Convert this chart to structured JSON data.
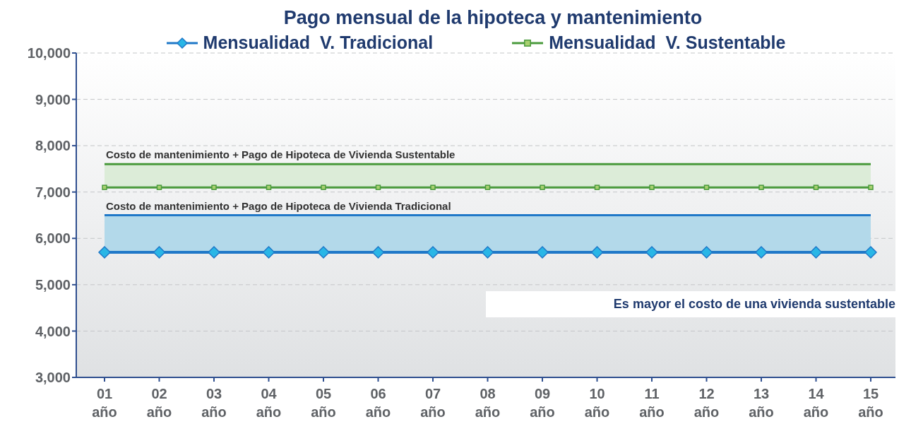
{
  "chart_data": {
    "type": "line",
    "title": "Pago mensual de la hipoteca y mantenimiento",
    "categories": [
      "01 año",
      "02 año",
      "03 año",
      "04 año",
      "05 año",
      "06 año",
      "07 año",
      "08 año",
      "09 año",
      "10 año",
      "11 año",
      "12 año",
      "13 año",
      "14 año",
      "15 año"
    ],
    "series": [
      {
        "name": "Mensualidad  V. Tradicional",
        "color": "#1f78c8",
        "marker": "diamond",
        "values": [
          5700,
          5700,
          5700,
          5700,
          5700,
          5700,
          5700,
          5700,
          5700,
          5700,
          5700,
          5700,
          5700,
          5700,
          5700
        ]
      },
      {
        "name": "Mensualidad  V. Sustentable",
        "color": "#4a9a3c",
        "marker": "square",
        "values": [
          7100,
          7100,
          7100,
          7100,
          7100,
          7100,
          7100,
          7100,
          7100,
          7100,
          7100,
          7100,
          7100,
          7100,
          7100
        ]
      },
      {
        "color": "#1f78c8",
        "marker": "none",
        "values": [
          6500,
          6500,
          6500,
          6500,
          6500,
          6500,
          6500,
          6500,
          6500,
          6500,
          6500,
          6500,
          6500,
          6500,
          6500
        ]
      },
      {
        "color": "#4a9a3c",
        "marker": "none",
        "values": [
          7600,
          7600,
          7600,
          7600,
          7600,
          7600,
          7600,
          7600,
          7600,
          7600,
          7600,
          7600,
          7600,
          7600,
          7600
        ]
      }
    ],
    "bands": [
      {
        "axis": "y",
        "from": 5700,
        "to": 6500,
        "label": "Costo de mantenimiento + Pago de Hipoteca  de Vivienda Tradicional",
        "color": "#b3d9ea"
      },
      {
        "axis": "y",
        "from": 7100,
        "to": 7600,
        "label": "Costo de mantenimiento + Pago de Hipoteca  de Vivienda Sustentable",
        "color": "#dcecd8"
      }
    ],
    "annotations": [
      "Es mayor el costo de una vivienda sustentable"
    ],
    "ylim": [
      3000,
      10000
    ],
    "yticks": [
      {
        "value": 3000,
        "label": "3,000"
      },
      {
        "value": 4000,
        "label": "4,000"
      },
      {
        "value": 5000,
        "label": "5,000"
      },
      {
        "value": 6000,
        "label": "6,000"
      },
      {
        "value": 7000,
        "label": "7,000"
      },
      {
        "value": 8000,
        "label": "8,000"
      },
      {
        "value": 9000,
        "label": "9,000"
      },
      {
        "value": 10000,
        "label": "10,000"
      }
    ],
    "grid": "y",
    "legend": "top"
  }
}
